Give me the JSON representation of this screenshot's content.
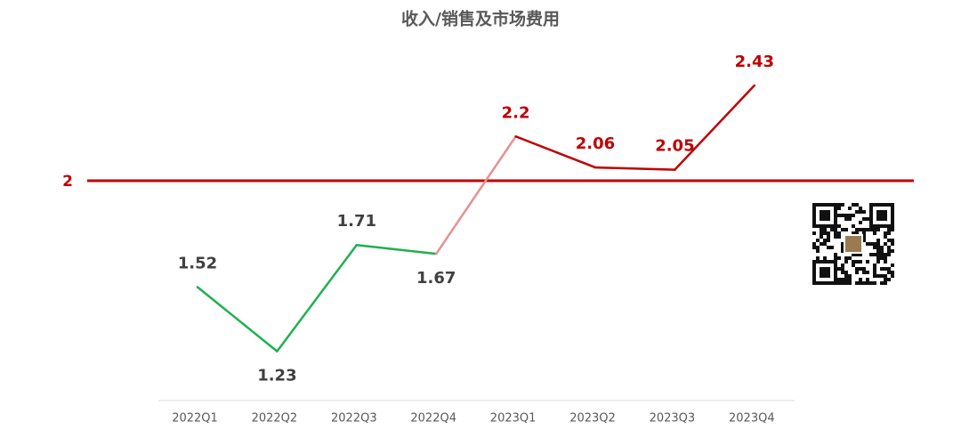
{
  "chart_data": {
    "type": "line",
    "title": "收入/销售及市场费用",
    "categories": [
      "2022Q1",
      "2022Q2",
      "2022Q3",
      "2022Q4",
      "2023Q1",
      "2023Q2",
      "2023Q3",
      "2023Q4"
    ],
    "values": [
      1.52,
      1.23,
      1.71,
      1.67,
      2.2,
      2.06,
      2.05,
      2.43
    ],
    "segment_colors": [
      "#1fb04f",
      "#1fb04f",
      "#1fb04f",
      "#e89090",
      "#c00000",
      "#c00000",
      "#c00000"
    ],
    "ylim": [
      1.1,
      2.5
    ],
    "reference_line": {
      "value": 2,
      "color": "#c00000"
    }
  }
}
